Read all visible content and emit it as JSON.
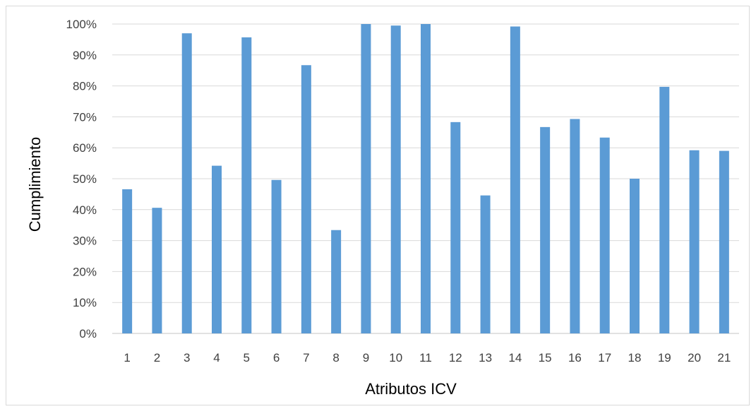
{
  "chart_data": {
    "type": "bar",
    "title": "",
    "xlabel": "Atributos ICV",
    "ylabel": "Cumplimiento",
    "categories": [
      "1",
      "2",
      "3",
      "4",
      "5",
      "6",
      "7",
      "8",
      "9",
      "10",
      "11",
      "12",
      "13",
      "14",
      "15",
      "16",
      "17",
      "18",
      "19",
      "20",
      "21"
    ],
    "values": [
      46.6,
      40.6,
      97.0,
      54.2,
      95.7,
      49.6,
      86.7,
      33.4,
      100.0,
      99.5,
      100.0,
      68.3,
      44.6,
      99.2,
      66.7,
      69.3,
      63.3,
      50.0,
      79.7,
      59.2,
      59.0
    ],
    "ylim": [
      0,
      100
    ],
    "ytick_labels": [
      "0%",
      "10%",
      "20%",
      "30%",
      "40%",
      "50%",
      "60%",
      "70%",
      "80%",
      "90%",
      "100%"
    ],
    "grid": true,
    "legend": "none",
    "bar_color": "#5b9bd5",
    "grid_color": "#d9d9d9"
  }
}
